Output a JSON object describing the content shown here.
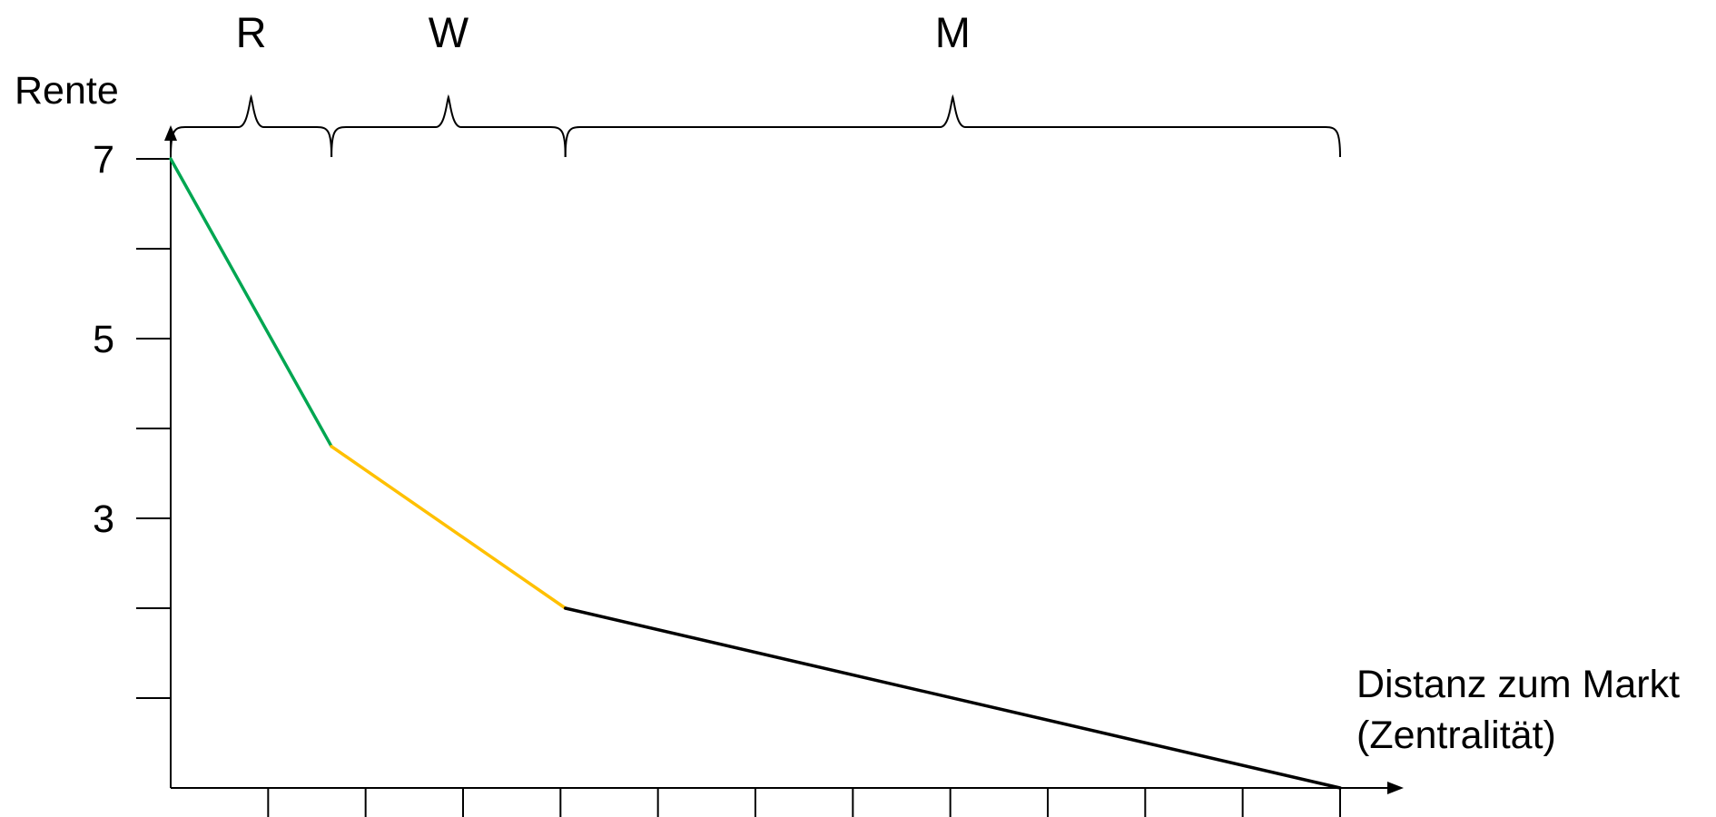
{
  "chart_data": {
    "type": "line",
    "title": "",
    "ylabel": "Rente",
    "xlabel_lines": [
      "Distanz zum Markt",
      "(Zentralität)"
    ],
    "xlim": [
      0,
      12
    ],
    "ylim": [
      0,
      7
    ],
    "x_ticks": [
      1,
      2,
      3,
      4,
      5,
      6,
      7,
      8,
      9,
      10,
      11,
      12
    ],
    "y_ticks": [
      1,
      2,
      3,
      4,
      5,
      6,
      7
    ],
    "y_tick_labels": [
      {
        "value": 3,
        "text": "3"
      },
      {
        "value": 5,
        "text": "5"
      },
      {
        "value": 7,
        "text": "7"
      }
    ],
    "segments": [
      {
        "points": [
          [
            0,
            7
          ],
          [
            1.65,
            3.8
          ]
        ],
        "color": "#00a651"
      },
      {
        "points": [
          [
            1.65,
            3.8
          ],
          [
            4.05,
            2
          ]
        ],
        "color": "#ffc000"
      },
      {
        "points": [
          [
            4.05,
            2
          ],
          [
            12,
            0
          ]
        ],
        "color": "#000000"
      }
    ],
    "zones": [
      {
        "label": "R",
        "from": 0,
        "to": 1.65
      },
      {
        "label": "W",
        "from": 1.65,
        "to": 4.05
      },
      {
        "label": "M",
        "from": 4.05,
        "to": 12
      }
    ],
    "grid": false,
    "legend": "none"
  }
}
